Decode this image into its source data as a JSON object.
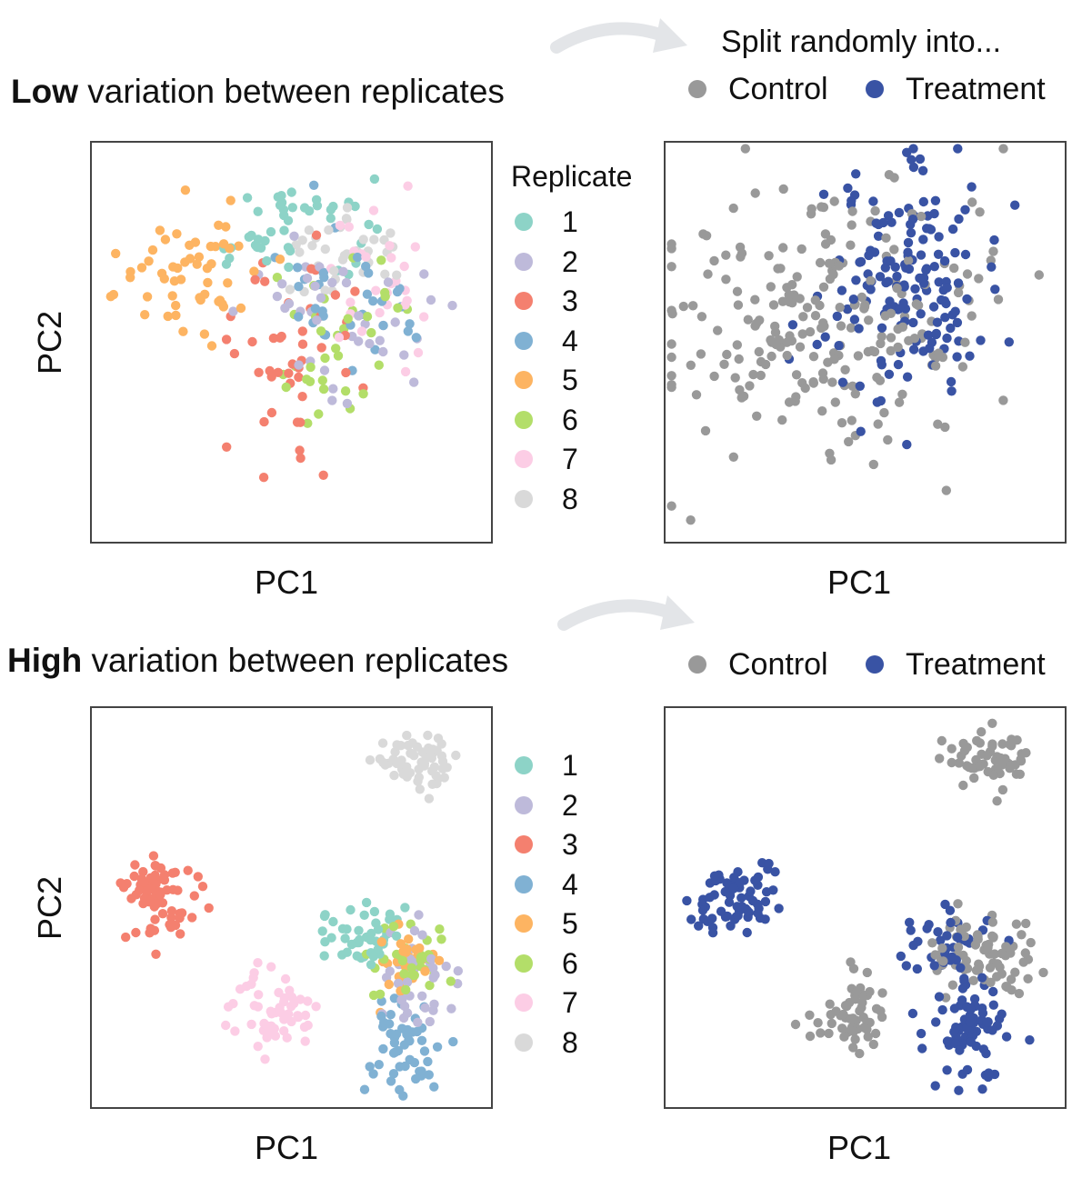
{
  "split_caption": "Split randomly into...",
  "groups": {
    "control": {
      "label": "Control",
      "color": "#999999"
    },
    "treatment": {
      "label": "Treatment",
      "color": "#3953a4"
    }
  },
  "legend": {
    "title": "Replicate",
    "items": [
      {
        "label": "1",
        "color": "#8dd3c7"
      },
      {
        "label": "2",
        "color": "#bebada"
      },
      {
        "label": "3",
        "color": "#f4806f"
      },
      {
        "label": "4",
        "color": "#80b1d3"
      },
      {
        "label": "5",
        "color": "#fdb462"
      },
      {
        "label": "6",
        "color": "#b3de69"
      },
      {
        "label": "7",
        "color": "#fccde5"
      },
      {
        "label": "8",
        "color": "#d9d9d9"
      }
    ]
  },
  "rows": [
    {
      "title_bold": "Low",
      "title_rest": " variation between replicates"
    },
    {
      "title_bold": "High",
      "title_rest": " variation between replicates"
    }
  ],
  "chart_data": [
    {
      "type": "scatter",
      "title": "Low variation between replicates",
      "xlabel": "PC1",
      "ylabel": "PC2",
      "color_by": "replicate",
      "xlim": [
        0,
        100
      ],
      "ylim": [
        0,
        100
      ],
      "replicate_clusters": [
        {
          "replicate": "1",
          "center": [
            50,
            79
          ],
          "spread": [
            9,
            6
          ],
          "n": 45,
          "seed": 11
        },
        {
          "replicate": "2",
          "center": [
            62,
            53
          ],
          "spread": [
            10,
            12
          ],
          "n": 40,
          "seed": 12
        },
        {
          "replicate": "3",
          "center": [
            50,
            44
          ],
          "spread": [
            10,
            14
          ],
          "n": 45,
          "seed": 13
        },
        {
          "replicate": "4",
          "center": [
            66,
            64
          ],
          "spread": [
            9,
            9
          ],
          "n": 35,
          "seed": 14
        },
        {
          "replicate": "5",
          "center": [
            24,
            67
          ],
          "spread": [
            9,
            9
          ],
          "n": 55,
          "seed": 15
        },
        {
          "replicate": "6",
          "center": [
            63,
            49
          ],
          "spread": [
            9,
            12
          ],
          "n": 35,
          "seed": 16
        },
        {
          "replicate": "7",
          "center": [
            72,
            63
          ],
          "spread": [
            9,
            10
          ],
          "n": 28,
          "seed": 17
        },
        {
          "replicate": "8",
          "center": [
            62,
            73
          ],
          "spread": [
            8,
            6
          ],
          "n": 35,
          "seed": 18
        }
      ]
    },
    {
      "type": "scatter",
      "title": "Low variation between replicates",
      "xlabel": "PC1",
      "ylabel": "",
      "color_by": "group",
      "xlim": [
        0,
        100
      ],
      "ylim": [
        0,
        100
      ],
      "groups": [
        "Control",
        "Treatment"
      ],
      "group_clusters": [
        {
          "group": "Control",
          "center": [
            42,
            56
          ],
          "spread": [
            20,
            18
          ],
          "n": 230,
          "seed": 21
        },
        {
          "group": "Treatment",
          "center": [
            59,
            66
          ],
          "spread": [
            10,
            14
          ],
          "n": 160,
          "seed": 22
        }
      ]
    },
    {
      "type": "scatter",
      "title": "High variation between replicates",
      "xlabel": "PC1",
      "ylabel": "PC2",
      "color_by": "replicate",
      "xlim": [
        0,
        100
      ],
      "ylim": [
        0,
        100
      ],
      "replicate_clusters": [
        {
          "replicate": "1",
          "center": [
            68,
            43
          ],
          "spread": [
            6,
            4
          ],
          "n": 45,
          "seed": 31
        },
        {
          "replicate": "2",
          "center": [
            82,
            32
          ],
          "spread": [
            5,
            6
          ],
          "n": 40,
          "seed": 32
        },
        {
          "replicate": "3",
          "center": [
            17,
            53
          ],
          "spread": [
            5,
            5
          ],
          "n": 70,
          "seed": 33
        },
        {
          "replicate": "4",
          "center": [
            78,
            15
          ],
          "spread": [
            5,
            6
          ],
          "n": 50,
          "seed": 34
        },
        {
          "replicate": "5",
          "center": [
            79,
            38
          ],
          "spread": [
            4,
            5
          ],
          "n": 30,
          "seed": 35
        },
        {
          "replicate": "6",
          "center": [
            81,
            35
          ],
          "spread": [
            5,
            5
          ],
          "n": 35,
          "seed": 36
        },
        {
          "replicate": "7",
          "center": [
            46,
            23
          ],
          "spread": [
            5,
            5
          ],
          "n": 55,
          "seed": 37
        },
        {
          "replicate": "8",
          "center": [
            82,
            86
          ],
          "spread": [
            5,
            4
          ],
          "n": 60,
          "seed": 38
        }
      ]
    },
    {
      "type": "scatter",
      "title": "High variation between replicates",
      "xlabel": "PC1",
      "ylabel": "",
      "color_by": "group",
      "xlim": [
        0,
        100
      ],
      "ylim": [
        0,
        100
      ],
      "groups": [
        "Control",
        "Treatment"
      ],
      "group_clusters": [
        {
          "group": "Treatment",
          "center": [
            17,
            53
          ],
          "spread": [
            5,
            5
          ],
          "n": 70,
          "seed": 41
        },
        {
          "group": "Control",
          "center": [
            82,
            86
          ],
          "spread": [
            5,
            4
          ],
          "n": 60,
          "seed": 42
        },
        {
          "group": "Control",
          "center": [
            46,
            23
          ],
          "spread": [
            5,
            5
          ],
          "n": 55,
          "seed": 43
        },
        {
          "group": "Treatment",
          "center": [
            77,
            20
          ],
          "spread": [
            5,
            8
          ],
          "n": 80,
          "seed": 44
        },
        {
          "group": "Control",
          "center": [
            79,
            38
          ],
          "spread": [
            6,
            5
          ],
          "n": 75,
          "seed": 45
        },
        {
          "group": "Treatment",
          "center": [
            70,
            42
          ],
          "spread": [
            7,
            4
          ],
          "n": 35,
          "seed": 46
        }
      ]
    }
  ]
}
